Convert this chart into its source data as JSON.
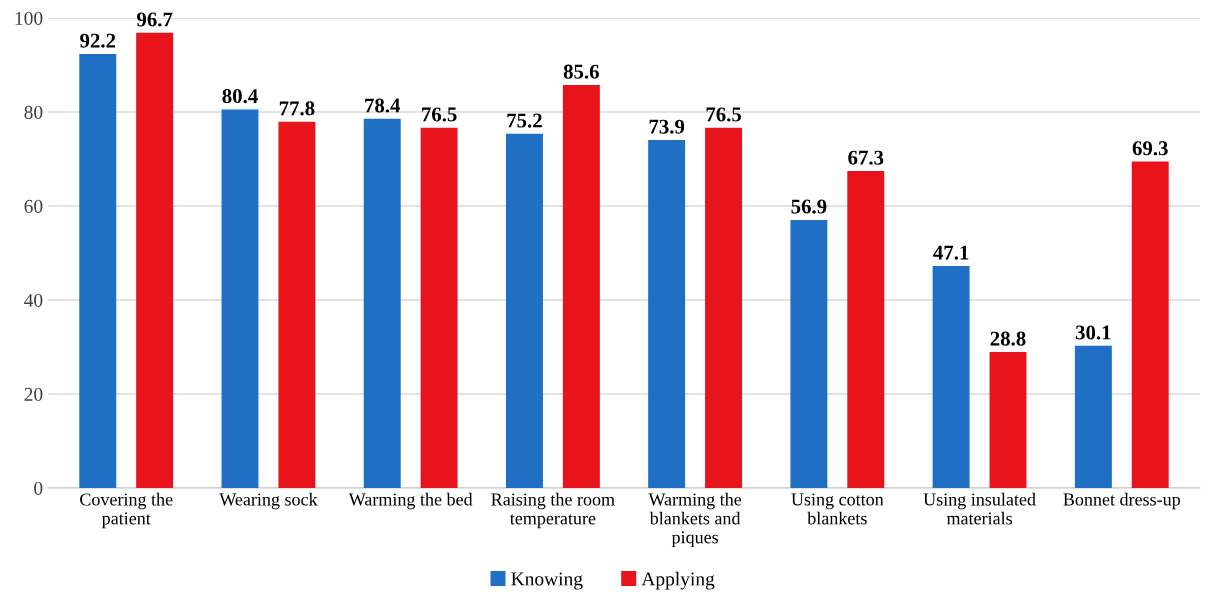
{
  "chart_data": {
    "type": "bar",
    "categories": [
      "Covering the\npatient",
      "Wearing sock",
      "Warming the bed",
      "Raising the room\ntemperature",
      "Warming the\nblankets and\npiques",
      "Using cotton\nblankets",
      "Using insulated\nmaterials",
      "Bonnet dress-up"
    ],
    "series": [
      {
        "name": "Knowing",
        "color": "#1f6fc5",
        "values": [
          92.2,
          80.4,
          78.4,
          75.2,
          73.9,
          56.9,
          47.1,
          30.1
        ]
      },
      {
        "name": "Applying",
        "color": "#e8141c",
        "values": [
          96.7,
          77.8,
          76.5,
          85.6,
          76.5,
          67.3,
          28.8,
          69.3
        ]
      }
    ],
    "ylim": [
      0,
      100
    ],
    "yticks": [
      0,
      20,
      40,
      60,
      80,
      100
    ],
    "grid": "y",
    "legend": "bottom",
    "data_labels": true
  }
}
